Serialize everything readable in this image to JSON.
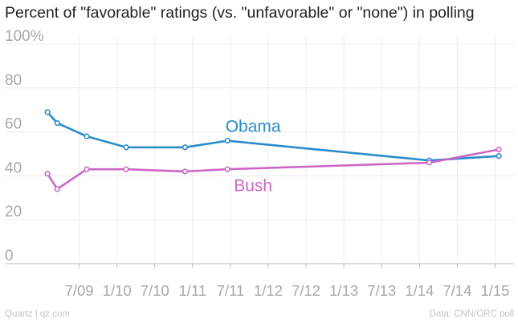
{
  "chart_data": {
    "type": "line",
    "title": "Percent of \"favorable\" ratings (vs. \"unfavorable\" or \"none\") in polling",
    "xlabel": "",
    "ylabel": "",
    "ylim": [
      0,
      100
    ],
    "y_ticks": [
      "0",
      "20",
      "40",
      "60",
      "80",
      "100%"
    ],
    "x_ticks": [
      "7/09",
      "1/10",
      "7/10",
      "1/11",
      "7/11",
      "1/12",
      "7/12",
      "1/13",
      "7/13",
      "1/14",
      "7/14",
      "1/15"
    ],
    "x_tick_values": [
      2009.5,
      2010.0,
      2010.5,
      2011.0,
      2011.5,
      2012.0,
      2012.5,
      2013.0,
      2013.5,
      2014.0,
      2014.5,
      2015.0
    ],
    "xlim": [
      2008.92,
      2015.25
    ],
    "grid": true,
    "series": [
      {
        "name": "Obama",
        "color": "#2a8ccb",
        "x": [
          2009.08,
          2009.21,
          2009.6,
          2010.12,
          2010.9,
          2011.46,
          2014.13,
          2015.05
        ],
        "values": [
          69,
          64,
          58,
          53,
          53,
          56,
          47,
          49
        ]
      },
      {
        "name": "Bush",
        "color": "#cc66c6",
        "x": [
          2009.08,
          2009.21,
          2009.6,
          2010.12,
          2010.9,
          2011.46,
          2014.13,
          2015.05
        ],
        "values": [
          41,
          34,
          43,
          43,
          42,
          43,
          46,
          52
        ]
      }
    ],
    "annotations": [
      {
        "text": "Obama",
        "series": "Obama"
      },
      {
        "text": "Bush",
        "series": "Bush"
      }
    ]
  },
  "footer": {
    "source_left": "Quartz | qz.com",
    "source_right": "Data: CNN/ORC poll"
  }
}
